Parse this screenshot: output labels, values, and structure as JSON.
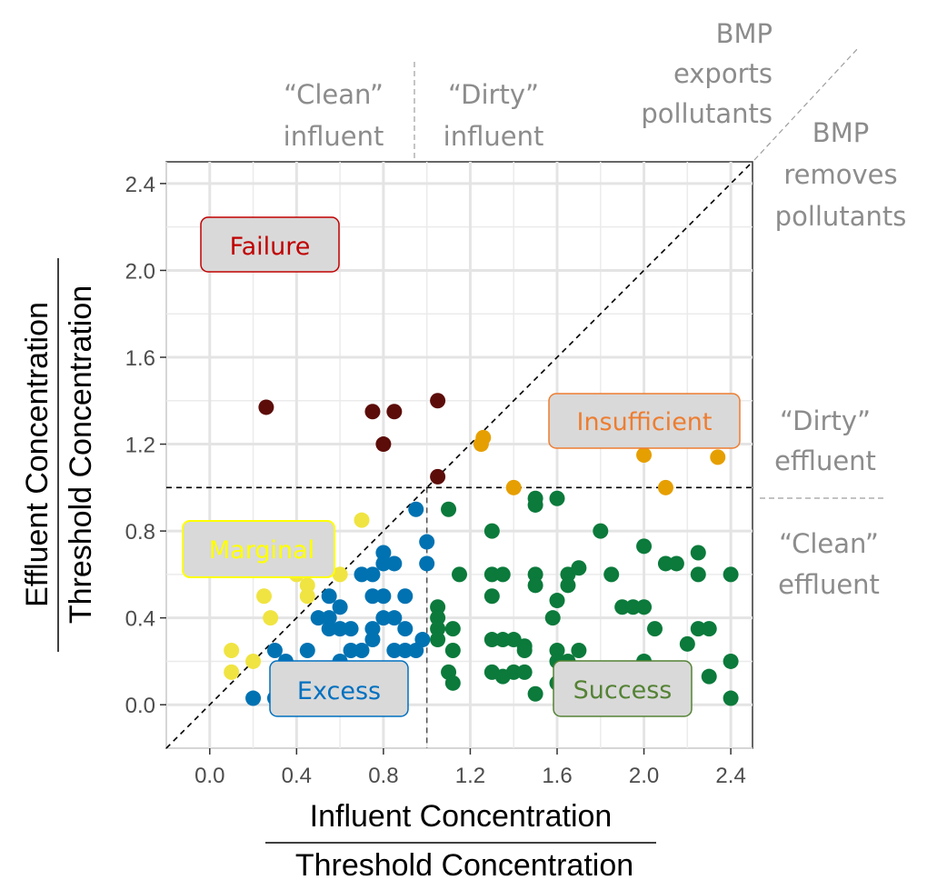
{
  "chart_data": {
    "type": "scatter",
    "xlim": [
      -0.2,
      2.5
    ],
    "ylim": [
      -0.2,
      2.5
    ],
    "x_ticks": [
      "0.0",
      "0.4",
      "0.8",
      "1.2",
      "1.6",
      "2.0",
      "2.4"
    ],
    "y_ticks": [
      "0.0",
      "0.4",
      "0.8",
      "1.2",
      "1.6",
      "2.0",
      "2.4"
    ],
    "x_tick_values": [
      0,
      0.4,
      0.8,
      1.2,
      1.6,
      2.0,
      2.4
    ],
    "y_tick_values": [
      0,
      0.4,
      0.8,
      1.2,
      1.6,
      2.0,
      2.4
    ],
    "xlabel": {
      "numerator": "Influent Concentration",
      "denominator": "Threshold Concentration"
    },
    "ylabel": {
      "numerator": "Effluent Concentration",
      "denominator": "Threshold Concentration"
    },
    "grid": true,
    "threshold_lines": {
      "vertical_x": 1.0,
      "horizontal_y": 1.0,
      "diagonal": "y = x"
    },
    "annotations": {
      "clean_influent": "“Clean” influent",
      "dirty_influent": "“Dirty” influent",
      "bmp_exports": "BMP exports pollutants",
      "bmp_removes": "BMP removes pollutants",
      "dirty_effluent": "“Dirty” effluent",
      "clean_effluent": "“Clean” effluent"
    },
    "series": [
      {
        "name": "Failure",
        "color": "#5c0d0a",
        "label_color": "#c00000",
        "points": [
          [
            0.26,
            1.37
          ],
          [
            0.75,
            1.35
          ],
          [
            0.85,
            1.35
          ],
          [
            0.8,
            1.2
          ],
          [
            1.05,
            1.4
          ],
          [
            1.05,
            1.05
          ]
        ]
      },
      {
        "name": "Insufficient",
        "color": "#e69f00",
        "label_color": "#ed7d31",
        "points": [
          [
            1.25,
            1.2
          ],
          [
            1.26,
            1.23
          ],
          [
            1.4,
            1.0
          ],
          [
            2.0,
            1.15
          ],
          [
            2.1,
            1.0
          ],
          [
            2.34,
            1.14
          ]
        ]
      },
      {
        "name": "Marginal",
        "color": "#f0e442",
        "label_color": "#ffff00",
        "points": [
          [
            0.1,
            0.25
          ],
          [
            0.1,
            0.15
          ],
          [
            0.2,
            0.2
          ],
          [
            0.25,
            0.5
          ],
          [
            0.28,
            0.4
          ],
          [
            0.4,
            0.6
          ],
          [
            0.45,
            0.55
          ],
          [
            0.45,
            0.5
          ],
          [
            0.6,
            0.6
          ],
          [
            0.7,
            0.85
          ]
        ]
      },
      {
        "name": "Excess",
        "color": "#0072b2",
        "label_color": "#0070c0",
        "points": [
          [
            0.2,
            0.03
          ],
          [
            0.3,
            0.03
          ],
          [
            0.3,
            0.25
          ],
          [
            0.45,
            0.25
          ],
          [
            0.45,
            0.03
          ],
          [
            0.55,
            0.03
          ],
          [
            0.5,
            0.4
          ],
          [
            0.55,
            0.5
          ],
          [
            0.55,
            0.4
          ],
          [
            0.55,
            0.35
          ],
          [
            0.6,
            0.35
          ],
          [
            0.65,
            0.35
          ],
          [
            0.6,
            0.45
          ],
          [
            0.7,
            0.6
          ],
          [
            0.75,
            0.6
          ],
          [
            0.75,
            0.5
          ],
          [
            0.8,
            0.7
          ],
          [
            0.8,
            0.65
          ],
          [
            0.85,
            0.65
          ],
          [
            0.8,
            0.5
          ],
          [
            0.75,
            0.35
          ],
          [
            0.75,
            0.3
          ],
          [
            0.8,
            0.4
          ],
          [
            0.85,
            0.4
          ],
          [
            0.9,
            0.5
          ],
          [
            0.9,
            0.35
          ],
          [
            0.9,
            0.25
          ],
          [
            0.95,
            0.9
          ],
          [
            0.95,
            0.25
          ],
          [
            0.98,
            0.3
          ],
          [
            1.0,
            0.75
          ],
          [
            1.0,
            0.65
          ],
          [
            0.7,
            0.25
          ],
          [
            0.65,
            0.25
          ],
          [
            0.6,
            0.2
          ],
          [
            0.85,
            0.25
          ],
          [
            0.35,
            0.2
          ]
        ]
      },
      {
        "name": "Success",
        "color": "#0b7a3b",
        "label_color": "#548235",
        "points": [
          [
            1.05,
            0.45
          ],
          [
            1.05,
            0.4
          ],
          [
            1.05,
            0.35
          ],
          [
            1.05,
            0.3
          ],
          [
            1.1,
            0.9
          ],
          [
            1.15,
            0.6
          ],
          [
            1.12,
            0.35
          ],
          [
            1.12,
            0.25
          ],
          [
            1.1,
            0.15
          ],
          [
            1.12,
            0.1
          ],
          [
            1.3,
            0.8
          ],
          [
            1.3,
            0.6
          ],
          [
            1.35,
            0.6
          ],
          [
            1.3,
            0.5
          ],
          [
            1.3,
            0.3
          ],
          [
            1.35,
            0.3
          ],
          [
            1.4,
            0.3
          ],
          [
            1.45,
            0.27
          ],
          [
            1.45,
            0.25
          ],
          [
            1.3,
            0.15
          ],
          [
            1.4,
            0.15
          ],
          [
            1.35,
            0.13
          ],
          [
            1.45,
            0.15
          ],
          [
            1.5,
            0.05
          ],
          [
            1.5,
            0.95
          ],
          [
            1.5,
            0.92
          ],
          [
            1.6,
            0.95
          ],
          [
            1.5,
            0.6
          ],
          [
            1.5,
            0.55
          ],
          [
            1.6,
            0.48
          ],
          [
            1.58,
            0.4
          ],
          [
            1.65,
            0.6
          ],
          [
            1.65,
            0.55
          ],
          [
            1.7,
            0.63
          ],
          [
            1.6,
            0.25
          ],
          [
            1.6,
            0.2
          ],
          [
            1.65,
            0.2
          ],
          [
            1.6,
            0.1
          ],
          [
            1.7,
            0.25
          ],
          [
            1.8,
            0.8
          ],
          [
            1.85,
            0.6
          ],
          [
            1.9,
            0.45
          ],
          [
            1.95,
            0.45
          ],
          [
            2.0,
            0.45
          ],
          [
            2.0,
            0.73
          ],
          [
            2.05,
            0.35
          ],
          [
            2.1,
            0.65
          ],
          [
            2.15,
            0.65
          ],
          [
            2.25,
            0.7
          ],
          [
            2.25,
            0.6
          ],
          [
            2.25,
            0.35
          ],
          [
            2.3,
            0.35
          ],
          [
            2.2,
            0.28
          ],
          [
            2.3,
            0.13
          ],
          [
            2.4,
            0.6
          ],
          [
            2.4,
            0.2
          ],
          [
            2.4,
            0.03
          ],
          [
            2.0,
            0.2
          ]
        ]
      }
    ]
  }
}
